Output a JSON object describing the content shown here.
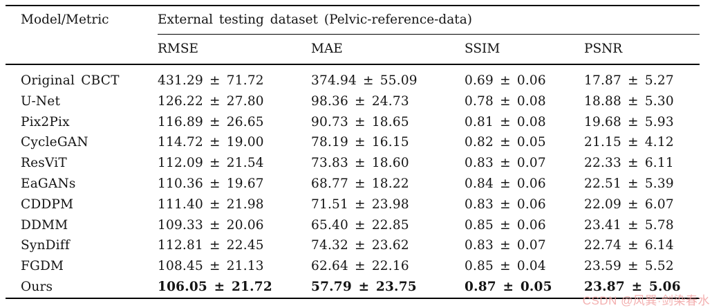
{
  "table": {
    "corner_header": "Model/Metric",
    "group_header": "External testing dataset (Pelvic-reference-data)",
    "columns": [
      "RMSE",
      "MAE",
      "SSIM",
      "PSNR"
    ],
    "rows": [
      {
        "model": "Original CBCT",
        "rmse": "431.29 ± 71.72",
        "mae": "374.94 ± 55.09",
        "ssim": "0.69 ± 0.06",
        "psnr": "17.87 ± 5.27",
        "bold": false
      },
      {
        "model": "U-Net",
        "rmse": "126.22 ± 27.80",
        "mae": "98.36 ± 24.73",
        "ssim": "0.78 ± 0.08",
        "psnr": "18.88 ± 5.30",
        "bold": false
      },
      {
        "model": "Pix2Pix",
        "rmse": "116.89 ± 26.65",
        "mae": "90.73 ± 18.65",
        "ssim": "0.81 ± 0.08",
        "psnr": "19.68 ± 5.93",
        "bold": false
      },
      {
        "model": "CycleGAN",
        "rmse": "114.72 ± 19.00",
        "mae": "78.19 ± 16.15",
        "ssim": "0.82 ± 0.05",
        "psnr": "21.15 ± 4.12",
        "bold": false
      },
      {
        "model": "ResViT",
        "rmse": "112.09 ± 21.54",
        "mae": "73.83 ± 18.60",
        "ssim": "0.83 ± 0.07",
        "psnr": "22.33 ± 6.11",
        "bold": false
      },
      {
        "model": "EaGANs",
        "rmse": "110.36 ± 19.67",
        "mae": "68.77 ± 18.22",
        "ssim": "0.84 ± 0.06",
        "psnr": "22.51 ± 5.39",
        "bold": false
      },
      {
        "model": "CDDPM",
        "rmse": "111.40 ± 21.98",
        "mae": "71.51 ± 23.98",
        "ssim": "0.83 ± 0.06",
        "psnr": "22.09 ± 6.07",
        "bold": false
      },
      {
        "model": "DDMM",
        "rmse": "109.33 ± 20.06",
        "mae": "65.40 ± 22.85",
        "ssim": "0.85 ± 0.06",
        "psnr": "23.41 ± 5.78",
        "bold": false
      },
      {
        "model": "SynDiff",
        "rmse": "112.81 ± 22.45",
        "mae": "74.32 ± 23.62",
        "ssim": "0.83 ± 0.07",
        "psnr": "22.74 ± 6.14",
        "bold": false
      },
      {
        "model": "FGDM",
        "rmse": "108.45 ± 21.13",
        "mae": "62.64 ± 22.16",
        "ssim": "0.85 ± 0.04",
        "psnr": "23.59 ± 5.52",
        "bold": false
      },
      {
        "model": "Ours",
        "rmse": "106.05 ± 21.72",
        "mae": "57.79 ± 23.75",
        "ssim": "0.87 ± 0.05",
        "psnr": "23.87 ± 5.06",
        "bold": true
      }
    ]
  },
  "watermark": {
    "text": "CSDN @风巽·剑染春水",
    "color": "#f2a3a3"
  }
}
